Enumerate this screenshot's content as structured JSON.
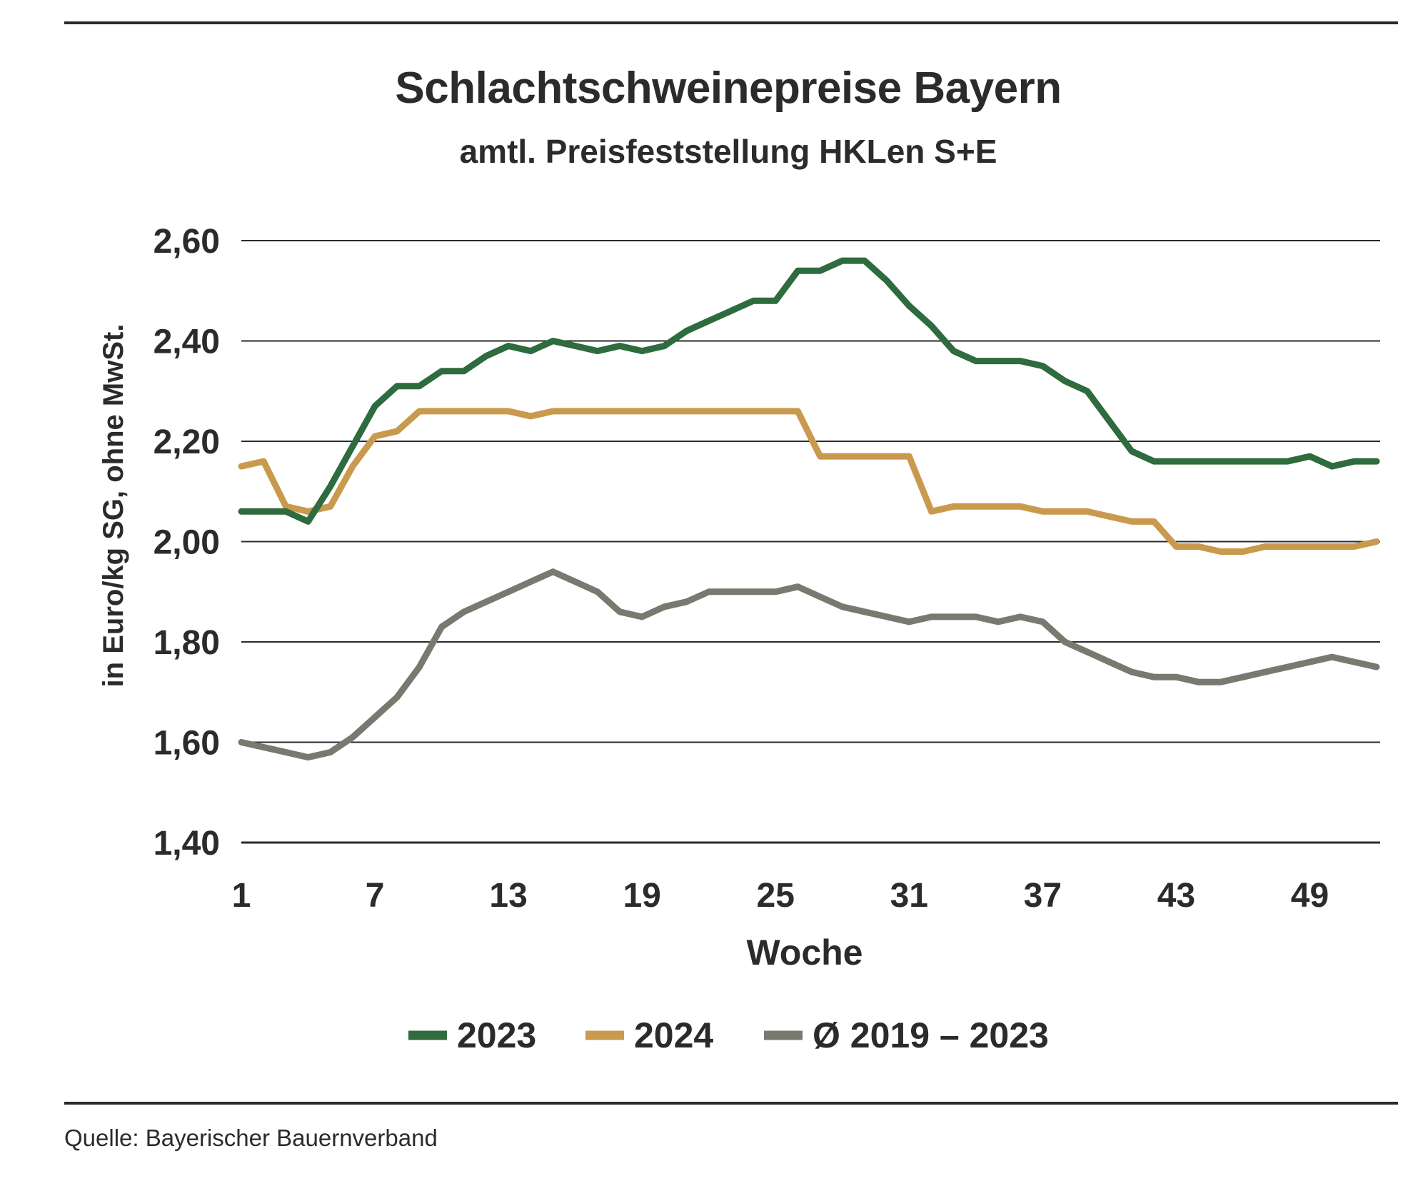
{
  "chart_data": {
    "type": "line",
    "title": "Schlachtschweinepreise Bayern",
    "subtitle": "amtl. Preisfeststellung HKLen S+E",
    "xlabel": "Woche",
    "ylabel": "in Euro/kg SG, ohne MwSt.",
    "xlim": [
      1,
      52
    ],
    "ylim": [
      1.4,
      2.6
    ],
    "x_ticks": [
      1,
      7,
      13,
      19,
      25,
      31,
      37,
      43,
      49
    ],
    "x_tick_labels": [
      "1",
      "7",
      "13",
      "19",
      "25",
      "31",
      "37",
      "43",
      "49"
    ],
    "y_ticks": [
      1.4,
      1.6,
      1.8,
      2.0,
      2.2,
      2.4,
      2.6
    ],
    "y_tick_labels": [
      "1,40",
      "1,60",
      "1,80",
      "2,00",
      "2,20",
      "2,40",
      "2,60"
    ],
    "grid": "horizontal",
    "legend_position": "bottom",
    "x": [
      1,
      2,
      3,
      4,
      5,
      6,
      7,
      8,
      9,
      10,
      11,
      12,
      13,
      14,
      15,
      16,
      17,
      18,
      19,
      20,
      21,
      22,
      23,
      24,
      25,
      26,
      27,
      28,
      29,
      30,
      31,
      32,
      33,
      34,
      35,
      36,
      37,
      38,
      39,
      40,
      41,
      42,
      43,
      44,
      45,
      46,
      47,
      48,
      49,
      50,
      51,
      52
    ],
    "series": [
      {
        "name": "2023",
        "color": "#2e6b3e",
        "values": [
          2.06,
          2.06,
          2.06,
          2.04,
          2.11,
          2.19,
          2.27,
          2.31,
          2.31,
          2.34,
          2.34,
          2.37,
          2.39,
          2.38,
          2.4,
          2.39,
          2.38,
          2.39,
          2.38,
          2.39,
          2.42,
          2.44,
          2.46,
          2.48,
          2.48,
          2.54,
          2.54,
          2.56,
          2.56,
          2.52,
          2.47,
          2.43,
          2.38,
          2.36,
          2.36,
          2.36,
          2.35,
          2.32,
          2.3,
          2.24,
          2.18,
          2.16,
          2.16,
          2.16,
          2.16,
          2.16,
          2.16,
          2.16,
          2.17,
          2.15,
          2.16,
          2.16
        ]
      },
      {
        "name": "2024",
        "color": "#c99a4e",
        "values": [
          2.15,
          2.16,
          2.07,
          2.06,
          2.07,
          2.15,
          2.21,
          2.22,
          2.26,
          2.26,
          2.26,
          2.26,
          2.26,
          2.25,
          2.26,
          2.26,
          2.26,
          2.26,
          2.26,
          2.26,
          2.26,
          2.26,
          2.26,
          2.26,
          2.26,
          2.26,
          2.17,
          2.17,
          2.17,
          2.17,
          2.17,
          2.06,
          2.07,
          2.07,
          2.07,
          2.07,
          2.06,
          2.06,
          2.06,
          2.05,
          2.04,
          2.04,
          1.99,
          1.99,
          1.98,
          1.98,
          1.99,
          1.99,
          1.99,
          1.99,
          1.99,
          2.0
        ]
      },
      {
        "name": "Ø 2019 – 2023",
        "color": "#787a70",
        "values": [
          1.6,
          1.59,
          1.58,
          1.57,
          1.58,
          1.61,
          1.65,
          1.69,
          1.75,
          1.83,
          1.86,
          1.88,
          1.9,
          1.92,
          1.94,
          1.92,
          1.9,
          1.86,
          1.85,
          1.87,
          1.88,
          1.9,
          1.9,
          1.9,
          1.9,
          1.91,
          1.89,
          1.87,
          1.86,
          1.85,
          1.84,
          1.85,
          1.85,
          1.85,
          1.84,
          1.85,
          1.84,
          1.8,
          1.78,
          1.76,
          1.74,
          1.73,
          1.73,
          1.72,
          1.72,
          1.73,
          1.74,
          1.75,
          1.76,
          1.77,
          1.76,
          1.75
        ]
      }
    ]
  },
  "source": "Quelle: Bayerischer Bauernverband"
}
